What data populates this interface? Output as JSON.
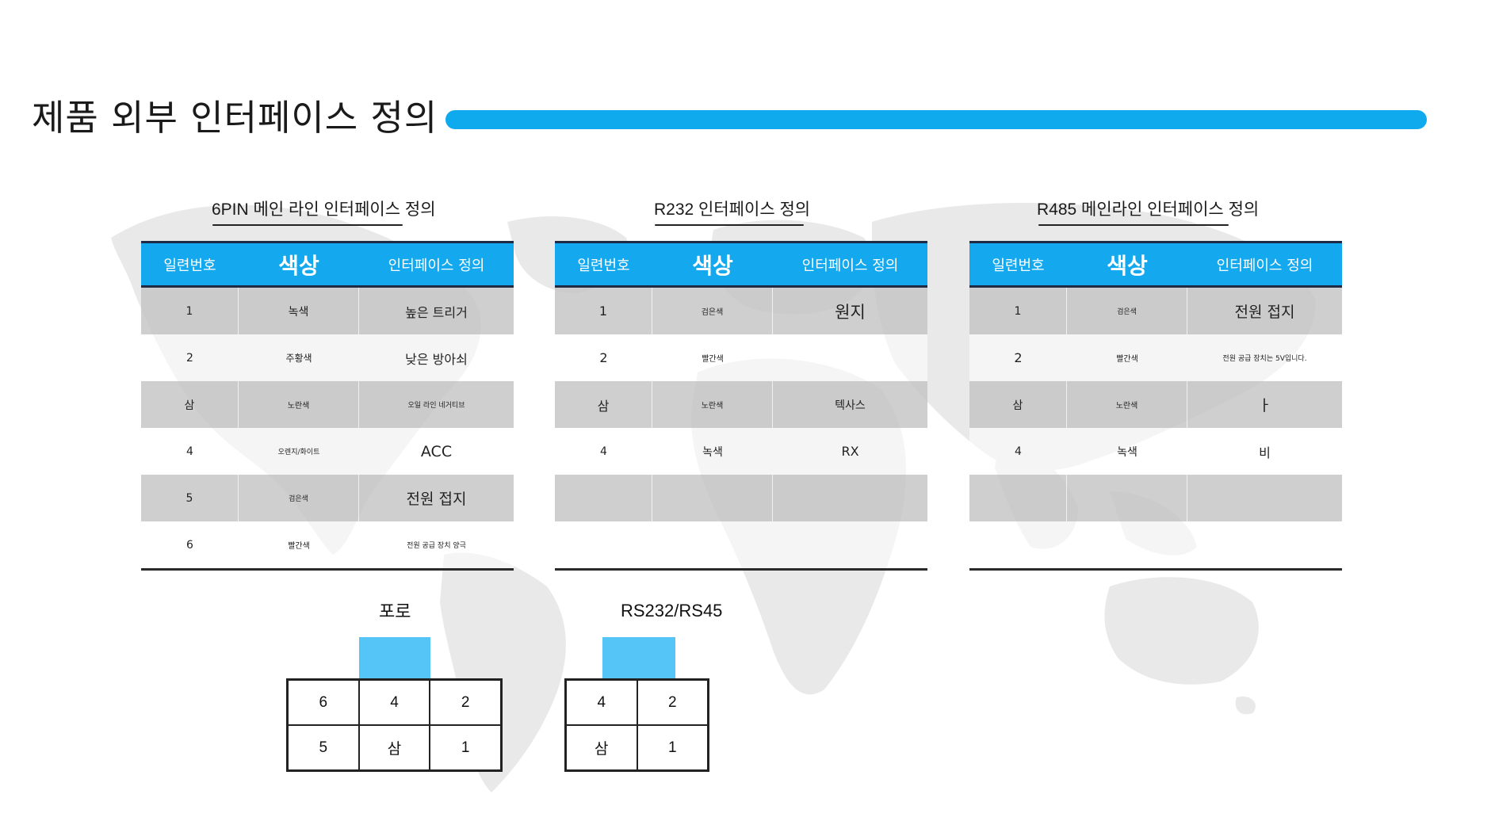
{
  "page": {
    "title": "제품 외부 인터페이스 정의",
    "accent_color": "#0fa9ee"
  },
  "tables": [
    {
      "heading": "6PIN 메인 라인 인터페이스 정의",
      "headers": [
        "일련번호",
        "색상",
        "인터페이스 정의"
      ],
      "rows": [
        [
          "1",
          "녹색",
          "높은 트리거"
        ],
        [
          "2",
          "주황색",
          "낮은 방아쇠"
        ],
        [
          "삼",
          "노란색",
          "오일 라인 네거티브"
        ],
        [
          "4",
          "오렌지/화이트",
          "ACC"
        ],
        [
          "5",
          "검은색",
          "전원 접지"
        ],
        [
          "6",
          "빨간색",
          "전원 공급 장치 양극"
        ]
      ]
    },
    {
      "heading": "R232 인터페이스 정의",
      "headers": [
        "일련번호",
        "색상",
        "인터페이스 정의"
      ],
      "rows": [
        [
          "1",
          "검은색",
          "원지"
        ],
        [
          "2",
          "빨간색",
          ""
        ],
        [
          "삼",
          "노란색",
          "텍사스"
        ],
        [
          "4",
          "녹색",
          "RX"
        ],
        [
          "",
          "",
          ""
        ],
        [
          "",
          "",
          ""
        ]
      ]
    },
    {
      "heading": "R485 메인라인 인터페이스 정의",
      "headers": [
        "일련번호",
        "색상",
        "인터페이스 정의"
      ],
      "rows": [
        [
          "1",
          "검은색",
          "전원 접지"
        ],
        [
          "2",
          "빨간색",
          "전원 공급 장치는 5V입니다."
        ],
        [
          "삼",
          "노란색",
          "ㅏ"
        ],
        [
          "4",
          "녹색",
          "비"
        ],
        [
          "",
          "",
          ""
        ],
        [
          "",
          "",
          ""
        ]
      ]
    }
  ],
  "connectors": [
    {
      "label": "포로",
      "cells": [
        "6",
        "4",
        "2",
        "5",
        "삼",
        "1"
      ]
    },
    {
      "label": "RS232/RS45",
      "cells": [
        "4",
        "2",
        "삼",
        "1"
      ]
    }
  ]
}
